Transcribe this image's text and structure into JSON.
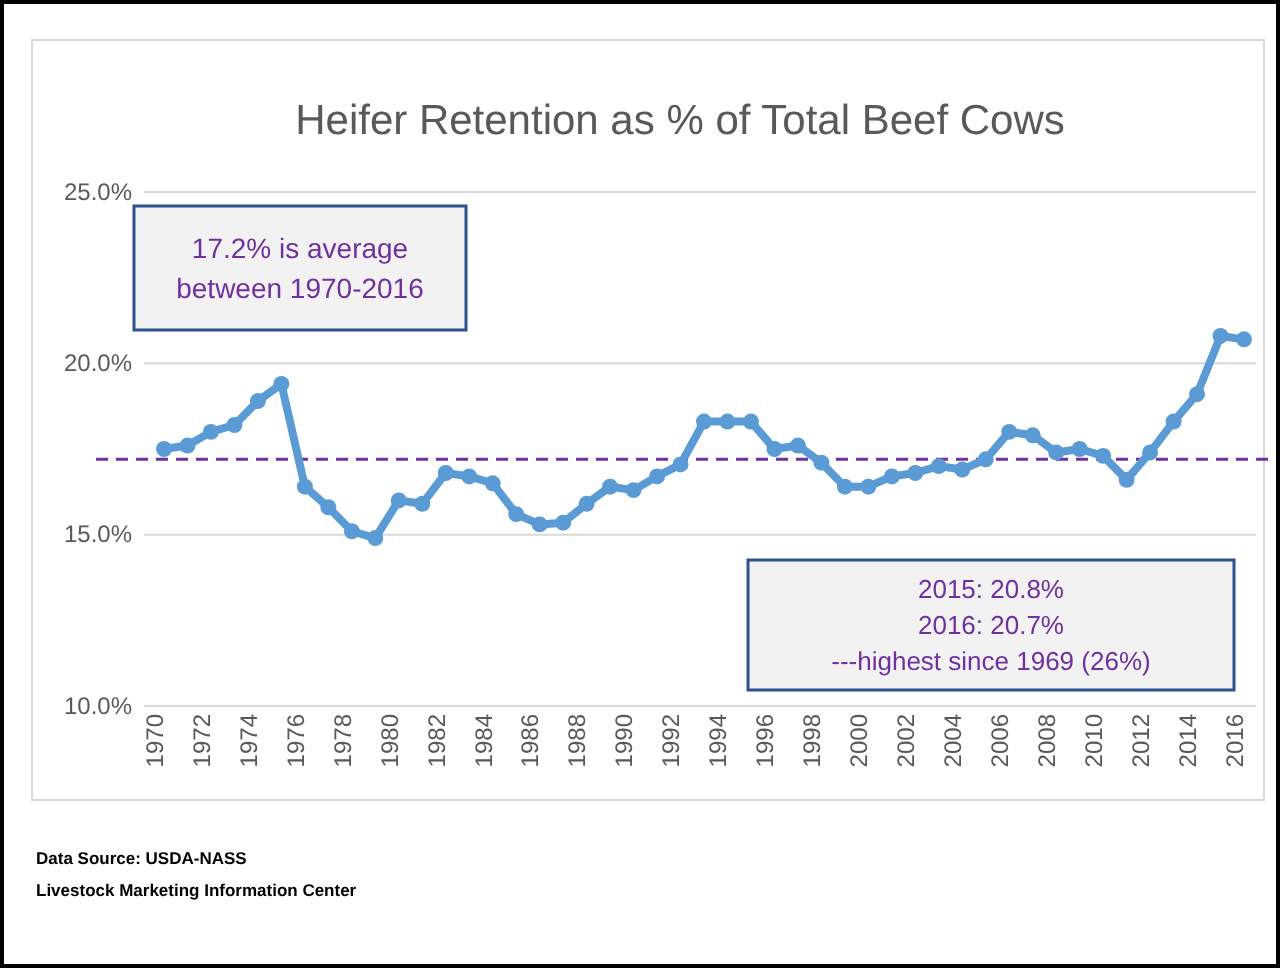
{
  "chart_data": {
    "type": "line",
    "title": "Heifer Retention as % of Total Beef Cows",
    "categories": [
      "1970",
      null,
      "1972",
      null,
      "1974",
      null,
      "1976",
      null,
      "1978",
      null,
      "1980",
      null,
      "1982",
      null,
      "1984",
      null,
      "1986",
      null,
      "1988",
      null,
      "1990",
      null,
      "1992",
      null,
      "1994",
      null,
      "1996",
      null,
      "1998",
      null,
      "2000",
      null,
      "2002",
      null,
      "2004",
      null,
      "2006",
      null,
      "2008",
      null,
      "2010",
      null,
      "2012",
      null,
      "2014",
      null,
      "2016"
    ],
    "series": [
      {
        "color": "#5b9bd5",
        "values": [
          17.5,
          17.6,
          18.0,
          18.2,
          18.9,
          19.4,
          16.4,
          15.8,
          15.1,
          14.9,
          16.0,
          15.9,
          16.8,
          16.7,
          16.5,
          15.6,
          15.3,
          15.35,
          15.9,
          16.4,
          16.3,
          16.7,
          17.05,
          18.3,
          18.3,
          18.3,
          17.5,
          17.6,
          17.1,
          16.4,
          16.4,
          16.7,
          16.8,
          17.0,
          16.9,
          17.2,
          18.0,
          17.9,
          17.4,
          17.5,
          17.3,
          16.6,
          17.4,
          18.3,
          19.1,
          20.8,
          20.7
        ]
      }
    ],
    "ylim": [
      10,
      25
    ],
    "yticks": [
      {
        "value": 10,
        "label": "10.0%"
      },
      {
        "value": 15,
        "label": "15.0%"
      },
      {
        "value": 20,
        "label": "20.0%"
      },
      {
        "value": 25,
        "label": "25.0%"
      }
    ],
    "grid": "y",
    "marker": "circle",
    "line_style": "solid",
    "ref_lines": [
      {
        "axis": "y",
        "value": 17.2,
        "color": "#7030a0",
        "line_style": "dashed"
      }
    ],
    "annotations": [
      "17.2% is average\nbetween 1970-2016",
      "2015: 20.8%\n2016: 20.7%\n---highest since 1969 (26%)",
      "Data Source:  USDA-NASS",
      "Livestock Marketing Information Center"
    ]
  }
}
